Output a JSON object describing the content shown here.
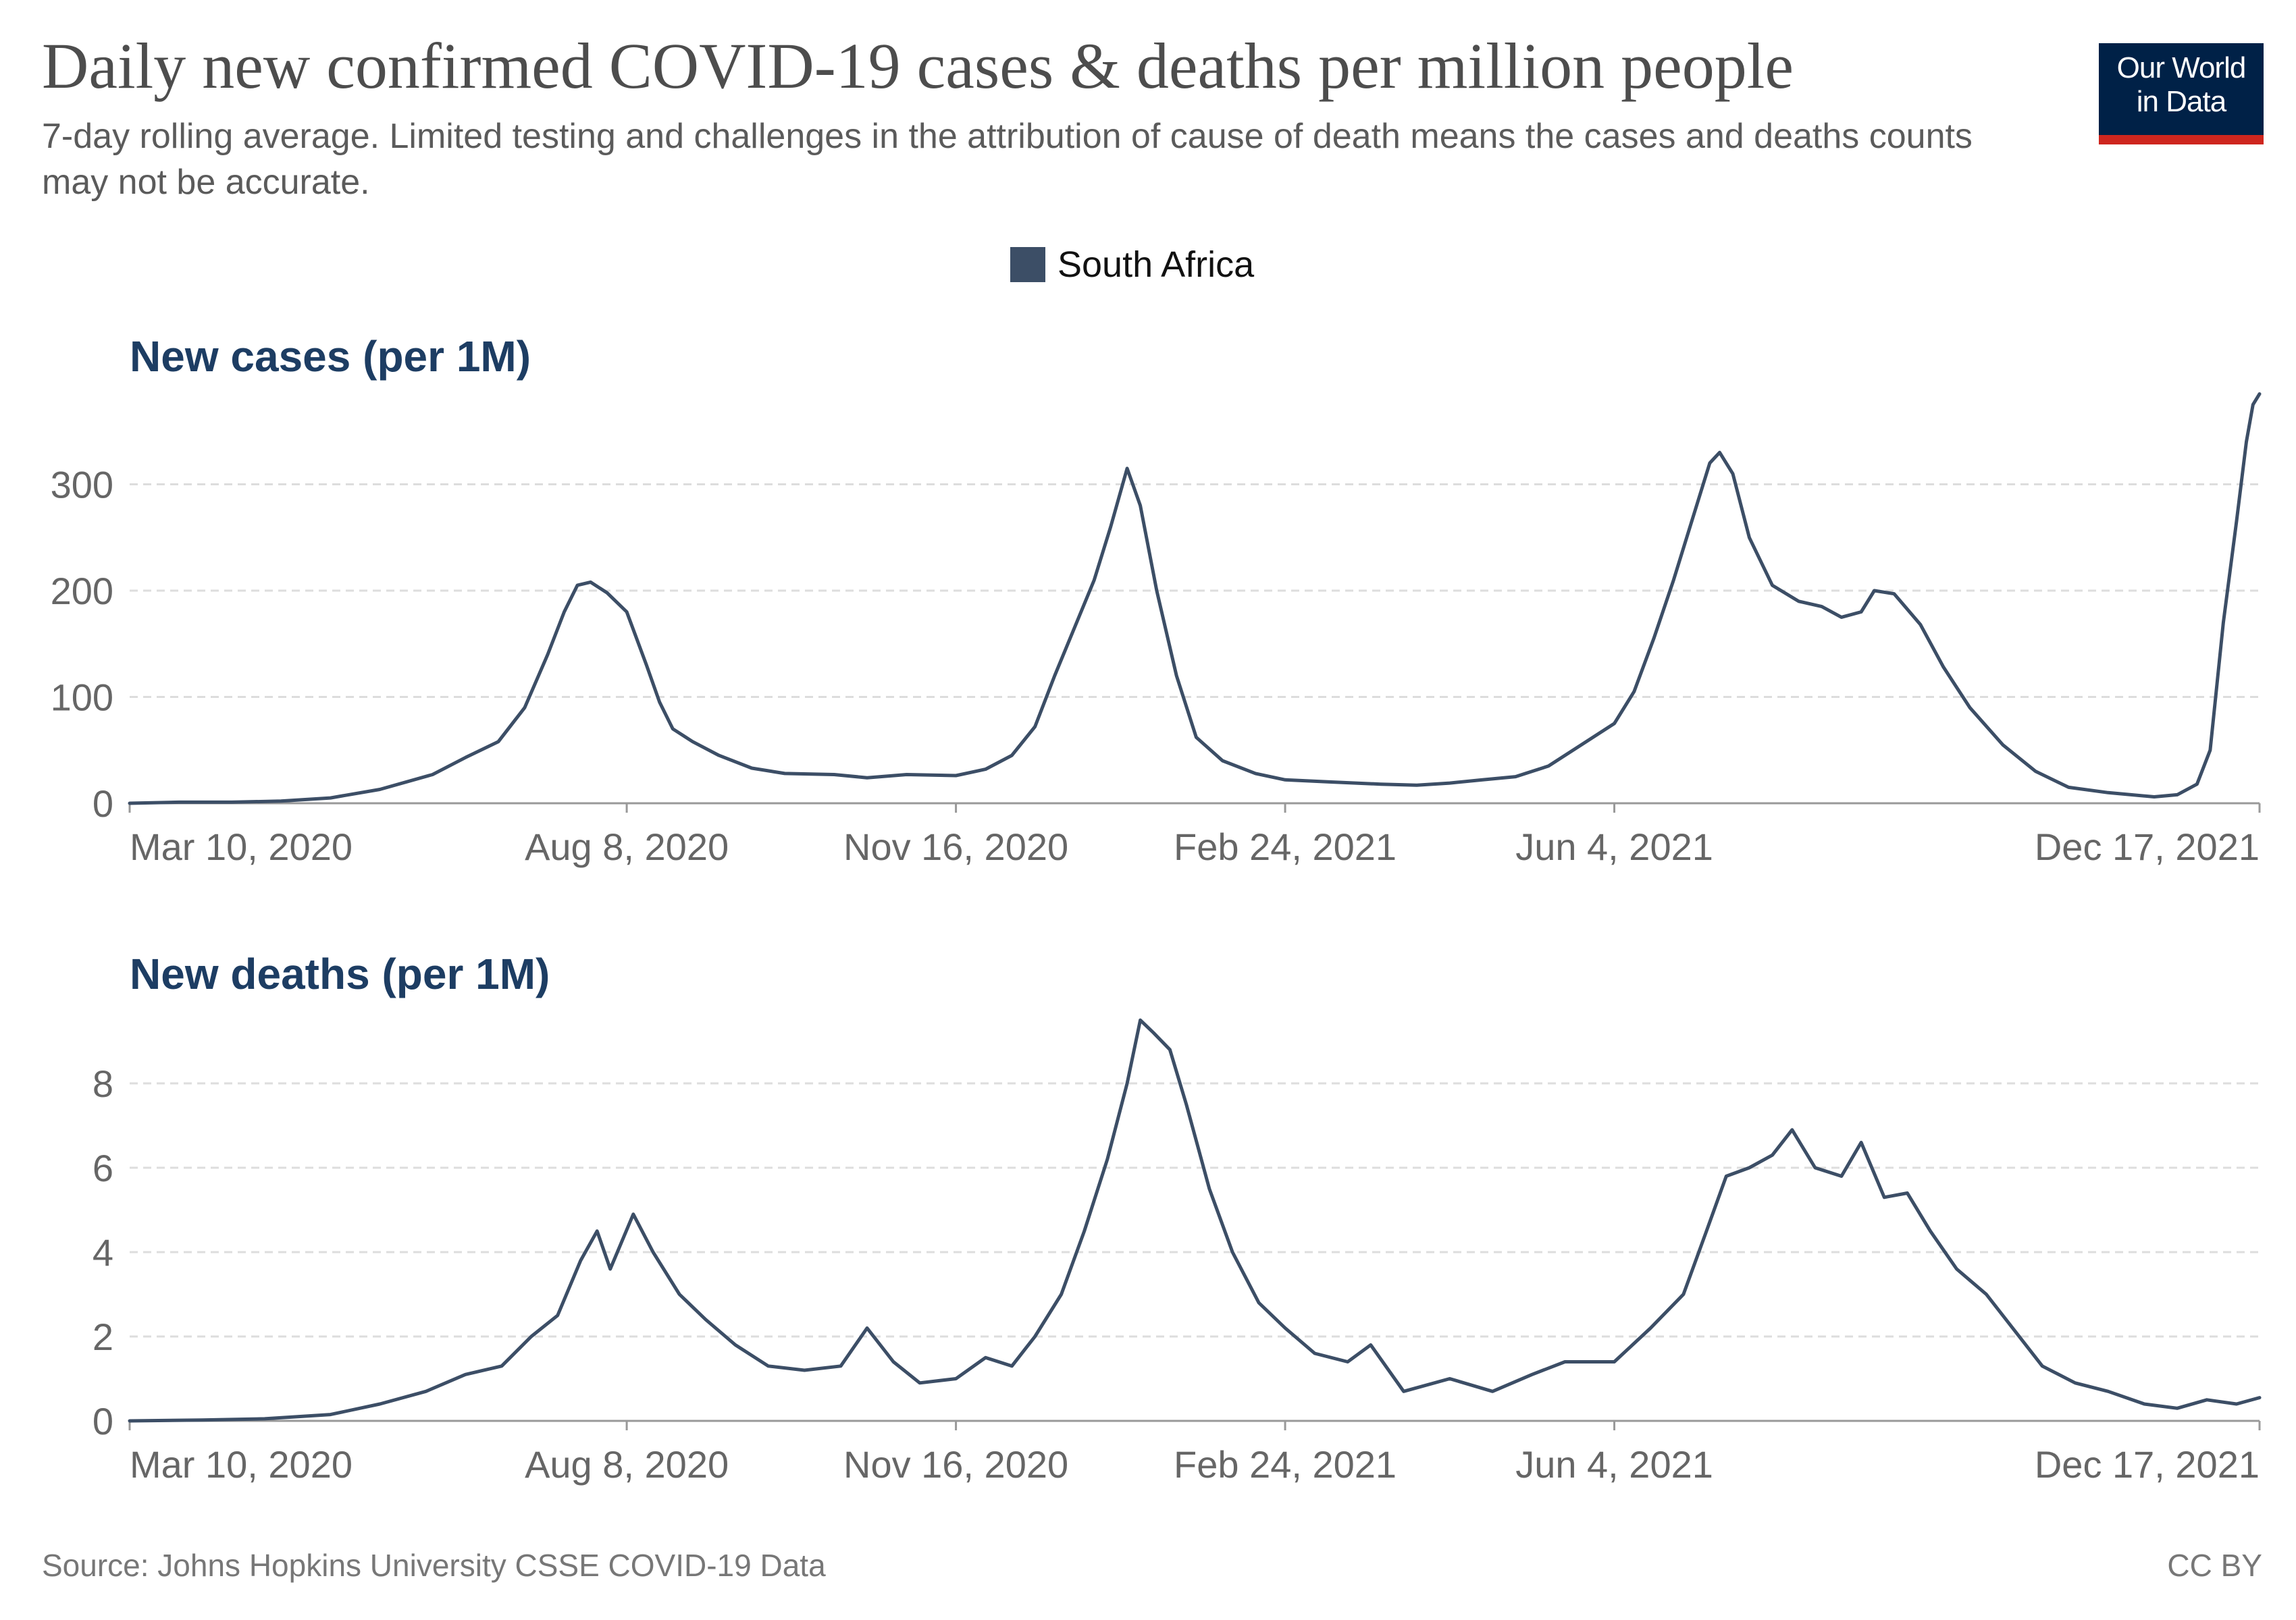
{
  "header": {
    "title": "Daily new confirmed COVID-19 cases & deaths per million people",
    "subtitle": "7-day rolling average. Limited testing and challenges in the attribution of cause of death means the cases and deaths counts may not be accurate."
  },
  "logo": {
    "line1": "Our World",
    "line2": "in Data",
    "background": "#002147",
    "accent": "#ce261e"
  },
  "legend": {
    "label": "South Africa",
    "color": "#3c4e66"
  },
  "footer": {
    "source": "Source: Johns Hopkins University CSSE COVID-19 Data",
    "license": "CC BY"
  },
  "chart_data": [
    {
      "type": "line",
      "title": "New cases (per 1M)",
      "x_ticks": [
        "Mar 10, 2020",
        "Aug 8, 2020",
        "Nov 16, 2020",
        "Feb 24, 2021",
        "Jun 4, 2021",
        "Dec 17, 2021"
      ],
      "y_ticks": [
        "0",
        "100",
        "200",
        "300"
      ],
      "ylim": [
        0,
        400
      ],
      "xlim": [
        "2020-03-10",
        "2021-12-17"
      ],
      "grid": "horizontal dashed",
      "legend_position": "top-center",
      "series": [
        {
          "name": "South Africa",
          "color": "#3c4e66",
          "points": [
            [
              "2020-03-10",
              0
            ],
            [
              "2020-03-25",
              1
            ],
            [
              "2020-04-10",
              1
            ],
            [
              "2020-04-25",
              2
            ],
            [
              "2020-05-10",
              5
            ],
            [
              "2020-05-25",
              13
            ],
            [
              "2020-06-10",
              27
            ],
            [
              "2020-06-20",
              43
            ],
            [
              "2020-06-30",
              58
            ],
            [
              "2020-07-08",
              90
            ],
            [
              "2020-07-15",
              140
            ],
            [
              "2020-07-20",
              180
            ],
            [
              "2020-07-24",
              205
            ],
            [
              "2020-07-28",
              208
            ],
            [
              "2020-08-02",
              198
            ],
            [
              "2020-08-08",
              180
            ],
            [
              "2020-08-14",
              130
            ],
            [
              "2020-08-18",
              95
            ],
            [
              "2020-08-22",
              70
            ],
            [
              "2020-08-28",
              58
            ],
            [
              "2020-09-05",
              45
            ],
            [
              "2020-09-15",
              33
            ],
            [
              "2020-09-25",
              28
            ],
            [
              "2020-10-10",
              27
            ],
            [
              "2020-10-20",
              24
            ],
            [
              "2020-11-01",
              27
            ],
            [
              "2020-11-16",
              26
            ],
            [
              "2020-11-25",
              32
            ],
            [
              "2020-12-03",
              45
            ],
            [
              "2020-12-10",
              72
            ],
            [
              "2020-12-16",
              120
            ],
            [
              "2020-12-22",
              165
            ],
            [
              "2020-12-28",
              210
            ],
            [
              "2021-01-02",
              260
            ],
            [
              "2021-01-07",
              315
            ],
            [
              "2021-01-11",
              280
            ],
            [
              "2021-01-16",
              200
            ],
            [
              "2021-01-22",
              120
            ],
            [
              "2021-01-28",
              62
            ],
            [
              "2021-02-05",
              40
            ],
            [
              "2021-02-15",
              28
            ],
            [
              "2021-02-24",
              22
            ],
            [
              "2021-03-10",
              20
            ],
            [
              "2021-03-25",
              18
            ],
            [
              "2021-04-05",
              17
            ],
            [
              "2021-04-15",
              19
            ],
            [
              "2021-04-25",
              22
            ],
            [
              "2021-05-05",
              25
            ],
            [
              "2021-05-15",
              35
            ],
            [
              "2021-05-25",
              55
            ],
            [
              "2021-06-04",
              75
            ],
            [
              "2021-06-10",
              105
            ],
            [
              "2021-06-16",
              155
            ],
            [
              "2021-06-22",
              210
            ],
            [
              "2021-06-28",
              270
            ],
            [
              "2021-07-03",
              320
            ],
            [
              "2021-07-06",
              330
            ],
            [
              "2021-07-10",
              310
            ],
            [
              "2021-07-15",
              250
            ],
            [
              "2021-07-22",
              205
            ],
            [
              "2021-07-30",
              190
            ],
            [
              "2021-08-06",
              185
            ],
            [
              "2021-08-12",
              175
            ],
            [
              "2021-08-18",
              180
            ],
            [
              "2021-08-22",
              200
            ],
            [
              "2021-08-28",
              197
            ],
            [
              "2021-09-05",
              168
            ],
            [
              "2021-09-12",
              128
            ],
            [
              "2021-09-20",
              90
            ],
            [
              "2021-09-30",
              55
            ],
            [
              "2021-10-10",
              30
            ],
            [
              "2021-10-20",
              15
            ],
            [
              "2021-11-01",
              10
            ],
            [
              "2021-11-15",
              6
            ],
            [
              "2021-11-22",
              8
            ],
            [
              "2021-11-28",
              18
            ],
            [
              "2021-12-02",
              50
            ],
            [
              "2021-12-06",
              170
            ],
            [
              "2021-12-10",
              265
            ],
            [
              "2021-12-13",
              340
            ],
            [
              "2021-12-15",
              375
            ],
            [
              "2021-12-17",
              385
            ]
          ]
        }
      ]
    },
    {
      "type": "line",
      "title": "New deaths (per 1M)",
      "x_ticks": [
        "Mar 10, 2020",
        "Aug 8, 2020",
        "Nov 16, 2020",
        "Feb 24, 2021",
        "Jun 4, 2021",
        "Dec 17, 2021"
      ],
      "y_ticks": [
        "0",
        "2",
        "4",
        "6",
        "8"
      ],
      "ylim": [
        0,
        10
      ],
      "xlim": [
        "2020-03-10",
        "2021-12-17"
      ],
      "grid": "horizontal dashed",
      "series": [
        {
          "name": "South Africa",
          "color": "#3c4e66",
          "points": [
            [
              "2020-03-10",
              0
            ],
            [
              "2020-04-01",
              0.02
            ],
            [
              "2020-04-20",
              0.05
            ],
            [
              "2020-05-10",
              0.15
            ],
            [
              "2020-05-25",
              0.4
            ],
            [
              "2020-06-08",
              0.7
            ],
            [
              "2020-06-20",
              1.1
            ],
            [
              "2020-07-01",
              1.3
            ],
            [
              "2020-07-10",
              2.0
            ],
            [
              "2020-07-18",
              2.5
            ],
            [
              "2020-07-25",
              3.8
            ],
            [
              "2020-07-30",
              4.5
            ],
            [
              "2020-08-03",
              3.6
            ],
            [
              "2020-08-10",
              4.9
            ],
            [
              "2020-08-16",
              4.0
            ],
            [
              "2020-08-24",
              3.0
            ],
            [
              "2020-09-01",
              2.4
            ],
            [
              "2020-09-10",
              1.8
            ],
            [
              "2020-09-20",
              1.3
            ],
            [
              "2020-10-01",
              1.2
            ],
            [
              "2020-10-12",
              1.3
            ],
            [
              "2020-10-20",
              2.2
            ],
            [
              "2020-10-28",
              1.4
            ],
            [
              "2020-11-05",
              0.9
            ],
            [
              "2020-11-16",
              1.0
            ],
            [
              "2020-11-25",
              1.5
            ],
            [
              "2020-12-03",
              1.3
            ],
            [
              "2020-12-10",
              2.0
            ],
            [
              "2020-12-18",
              3.0
            ],
            [
              "2020-12-25",
              4.5
            ],
            [
              "2021-01-01",
              6.2
            ],
            [
              "2021-01-07",
              8.0
            ],
            [
              "2021-01-11",
              9.5
            ],
            [
              "2021-01-15",
              9.2
            ],
            [
              "2021-01-20",
              8.8
            ],
            [
              "2021-01-25",
              7.5
            ],
            [
              "2021-02-01",
              5.5
            ],
            [
              "2021-02-08",
              4.0
            ],
            [
              "2021-02-16",
              2.8
            ],
            [
              "2021-02-24",
              2.2
            ],
            [
              "2021-03-05",
              1.6
            ],
            [
              "2021-03-15",
              1.4
            ],
            [
              "2021-03-22",
              1.8
            ],
            [
              "2021-04-01",
              0.7
            ],
            [
              "2021-04-15",
              1.0
            ],
            [
              "2021-04-28",
              0.7
            ],
            [
              "2021-05-10",
              1.1
            ],
            [
              "2021-05-20",
              1.4
            ],
            [
              "2021-06-04",
              1.4
            ],
            [
              "2021-06-15",
              2.2
            ],
            [
              "2021-06-25",
              3.0
            ],
            [
              "2021-07-02",
              4.5
            ],
            [
              "2021-07-08",
              5.8
            ],
            [
              "2021-07-15",
              6.0
            ],
            [
              "2021-07-22",
              6.3
            ],
            [
              "2021-07-28",
              6.9
            ],
            [
              "2021-08-04",
              6.0
            ],
            [
              "2021-08-12",
              5.8
            ],
            [
              "2021-08-18",
              6.6
            ],
            [
              "2021-08-25",
              5.3
            ],
            [
              "2021-09-01",
              5.4
            ],
            [
              "2021-09-08",
              4.5
            ],
            [
              "2021-09-16",
              3.6
            ],
            [
              "2021-09-25",
              3.0
            ],
            [
              "2021-10-03",
              2.2
            ],
            [
              "2021-10-12",
              1.3
            ],
            [
              "2021-10-22",
              0.9
            ],
            [
              "2021-11-01",
              0.7
            ],
            [
              "2021-11-12",
              0.4
            ],
            [
              "2021-11-22",
              0.3
            ],
            [
              "2021-12-01",
              0.5
            ],
            [
              "2021-12-10",
              0.4
            ],
            [
              "2021-12-17",
              0.55
            ]
          ]
        }
      ]
    }
  ]
}
